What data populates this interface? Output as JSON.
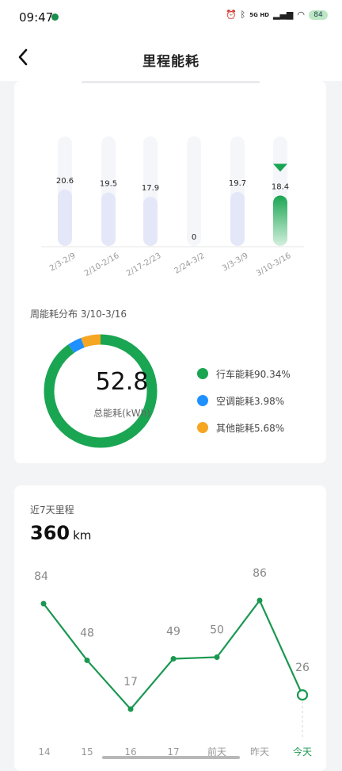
{
  "status": {
    "time": "09:47",
    "network": "5G HD",
    "battery": "84"
  },
  "header": {
    "title": "里程能耗"
  },
  "weekly_energy": {
    "chart_data": {
      "type": "bar",
      "categories": [
        "2/3-2/9",
        "2/10-2/16",
        "2/17-2/23",
        "2/24-3/2",
        "3/3-3/9",
        "3/10-3/16"
      ],
      "values": [
        20.6,
        19.5,
        17.9,
        0,
        19.7,
        18.4
      ],
      "value_labels": [
        "20.6",
        "19.5",
        "17.9",
        "0",
        "19.7",
        "18.4"
      ],
      "selected_index": 5,
      "ylim": [
        0,
        40
      ],
      "colors": {
        "bar": "#e4e7f8",
        "selected": "#1aa552",
        "track": "#f5f6fa"
      }
    }
  },
  "distribution": {
    "title": "周能耗分布 3/10-3/16",
    "total_value": "52.8",
    "total_label": "总能耗(kWh)",
    "chart_data": {
      "type": "pie",
      "slices": [
        {
          "label": "行车能耗",
          "value": 90.34,
          "text": "90.34%",
          "color": "#1aa552"
        },
        {
          "label": "空调能耗",
          "value": 3.98,
          "text": "3.98%",
          "color": "#1e90ff"
        },
        {
          "label": "其他能耗",
          "value": 5.68,
          "text": "5.68%",
          "color": "#f5a623"
        }
      ]
    }
  },
  "mileage": {
    "title": "近7天里程",
    "value": "360",
    "unit": "km",
    "chart_data": {
      "type": "line",
      "categories": [
        "14",
        "15",
        "16",
        "17",
        "前天",
        "昨天",
        "今天"
      ],
      "values": [
        84,
        48,
        17,
        49,
        50,
        86,
        26
      ],
      "value_labels": [
        "84",
        "48",
        "17",
        "49",
        "50",
        "86",
        "26"
      ],
      "selected_index": 6,
      "line_color": "#1a9850"
    }
  }
}
